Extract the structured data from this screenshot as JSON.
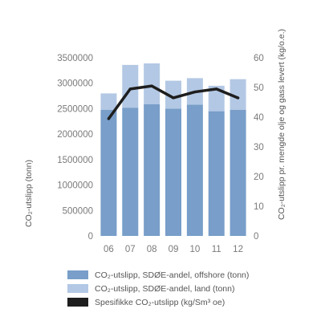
{
  "chart_data": {
    "type": "bar+line",
    "categories": [
      "06",
      "07",
      "08",
      "09",
      "10",
      "11",
      "12"
    ],
    "series": [
      {
        "name": "CO₂-utslipp, SDØE-andel, offshore (tonn)",
        "kind": "bar",
        "axis": "left",
        "stack": "total",
        "values": [
          2480000,
          2520000,
          2590000,
          2500000,
          2580000,
          2450000,
          2480000
        ]
      },
      {
        "name": "CO₂-utslipp, SDØE-andel, land (tonn)",
        "kind": "bar",
        "axis": "left",
        "stack": "total",
        "values": [
          320000,
          840000,
          800000,
          550000,
          520000,
          500000,
          600000
        ]
      },
      {
        "name": "Spesifikke CO₂-utslipp (kg/Sm³ oe)",
        "kind": "line",
        "axis": "right",
        "values": [
          39.5,
          49.5,
          50.5,
          46.5,
          48.5,
          49.5,
          46.5
        ]
      }
    ],
    "ylabel": "CO₂-utslipp (tonn)",
    "y2label": "CO₂-utslipp pr. mengde olje og gass levert (kg/o.e.)",
    "ylim": [
      0,
      3500000
    ],
    "yticks": [
      "0",
      "500000",
      "1000000",
      "1500000",
      "2000000",
      "2500000",
      "3000000",
      "3500000"
    ],
    "y2lim": [
      0,
      60
    ],
    "y2ticks": [
      "0",
      "10",
      "20",
      "30",
      "40",
      "50",
      "60"
    ],
    "grid": false,
    "legend_position": "bottom",
    "colors": {
      "offshore": "#789ec9",
      "land": "#b3c8e4",
      "line": "#1e1e1e"
    }
  }
}
